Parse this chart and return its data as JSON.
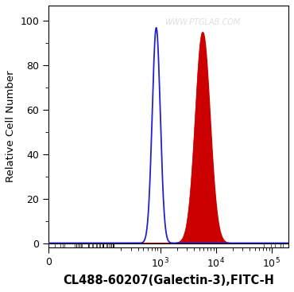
{
  "xlabel": "CL488-60207(Galectin-3),FITC-H",
  "ylabel": "Relative Cell Number",
  "background_color": "#ffffff",
  "watermark": "WWW.PTGLAB.COM",
  "blue_peak_log": 2.93,
  "blue_peak_height": 97,
  "blue_sigma_log": 0.072,
  "red_peak_log": 3.76,
  "red_peak_height": 95,
  "red_sigma_log": 0.13,
  "blue_color": "#2222cc",
  "red_color": "#cc0000",
  "xlim": [
    10,
    200000
  ],
  "ylim": [
    -2,
    107
  ],
  "xlabel_fontsize": 10.5,
  "ylabel_fontsize": 9.5,
  "tick_fontsize": 9
}
